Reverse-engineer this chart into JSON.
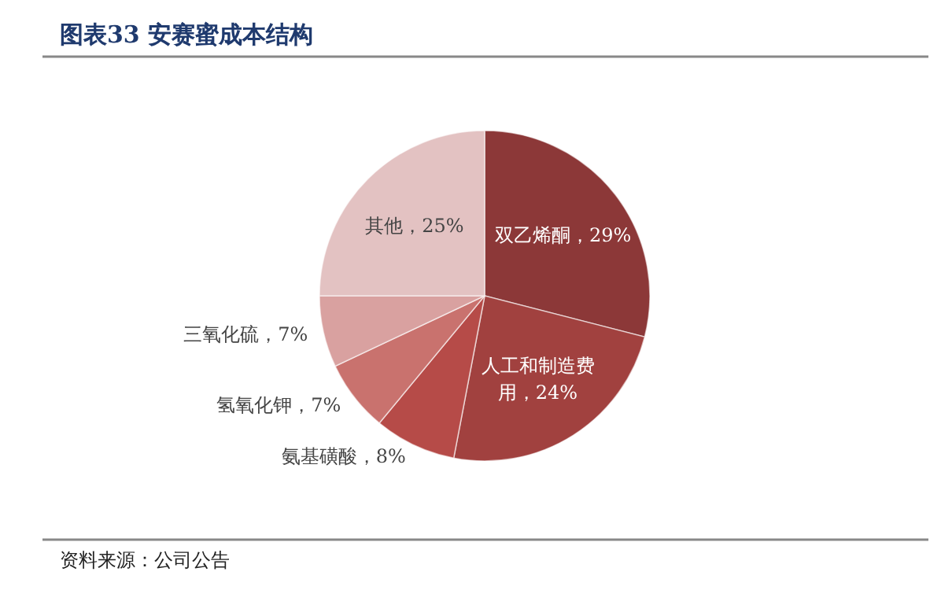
{
  "chart_data": {
    "type": "pie",
    "title": "图表33 安赛蜜成本结构",
    "categories": [
      "双乙烯酮",
      "人工和制造费用",
      "氨基磺酸",
      "氢氧化钾",
      "三氧化硫",
      "其他"
    ],
    "values": [
      29,
      24,
      8,
      7,
      7,
      25
    ],
    "value_labels": [
      "29%",
      "24%",
      "8%",
      "7%",
      "7%",
      "25%"
    ],
    "colors": [
      "#8c3838",
      "#a1413f",
      "#b64b48",
      "#c9726e",
      "#d9a1a0",
      "#e3c2c2"
    ],
    "annotations": [
      "资料来源：公司公告"
    ]
  }
}
